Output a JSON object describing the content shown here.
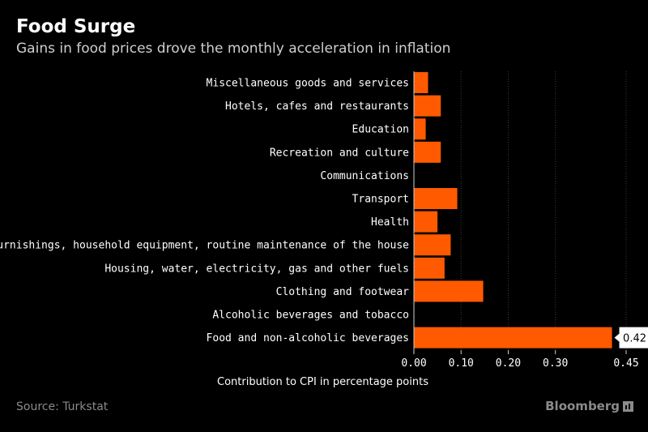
{
  "header": {
    "title": "Food Surge",
    "subtitle": "Gains in food prices drove the monthly acceleration in inflation"
  },
  "footer": {
    "source": "Source: Turkstat",
    "brand": "Bloomberg"
  },
  "colors": {
    "background": "#000000",
    "bar": "#ff5a00",
    "text": "#ffffff",
    "muted": "#8a8a8a"
  },
  "chart_data": {
    "type": "bar",
    "orientation": "horizontal",
    "categories": [
      "Miscellaneous goods and services",
      "Hotels, cafes and restaurants",
      "Education",
      "Recreation and culture",
      "Communications",
      "Transport",
      "Health",
      "Furnishings, household equipment, routine maintenance of the house",
      "Housing, water, electricity, gas and other fuels",
      "Clothing and footwear",
      "Alcoholic beverages and tobacco",
      "Food and non-alcoholic beverages"
    ],
    "values": [
      0.03,
      0.057,
      0.025,
      0.057,
      0.0,
      0.092,
      0.05,
      0.078,
      0.065,
      0.147,
      0.0,
      0.42
    ],
    "xlabel": "Contribution to CPI in percentage points",
    "ylabel": "",
    "xlim": [
      0,
      0.45
    ],
    "ticks": [
      0.0,
      0.1,
      0.2,
      0.3,
      0.45
    ],
    "tick_labels": [
      "0.00",
      "0.10",
      "0.20",
      "0.30",
      "0.45"
    ],
    "grid": true,
    "annotation": {
      "category": "Food and non-alcoholic beverages",
      "label": "0.42"
    }
  }
}
